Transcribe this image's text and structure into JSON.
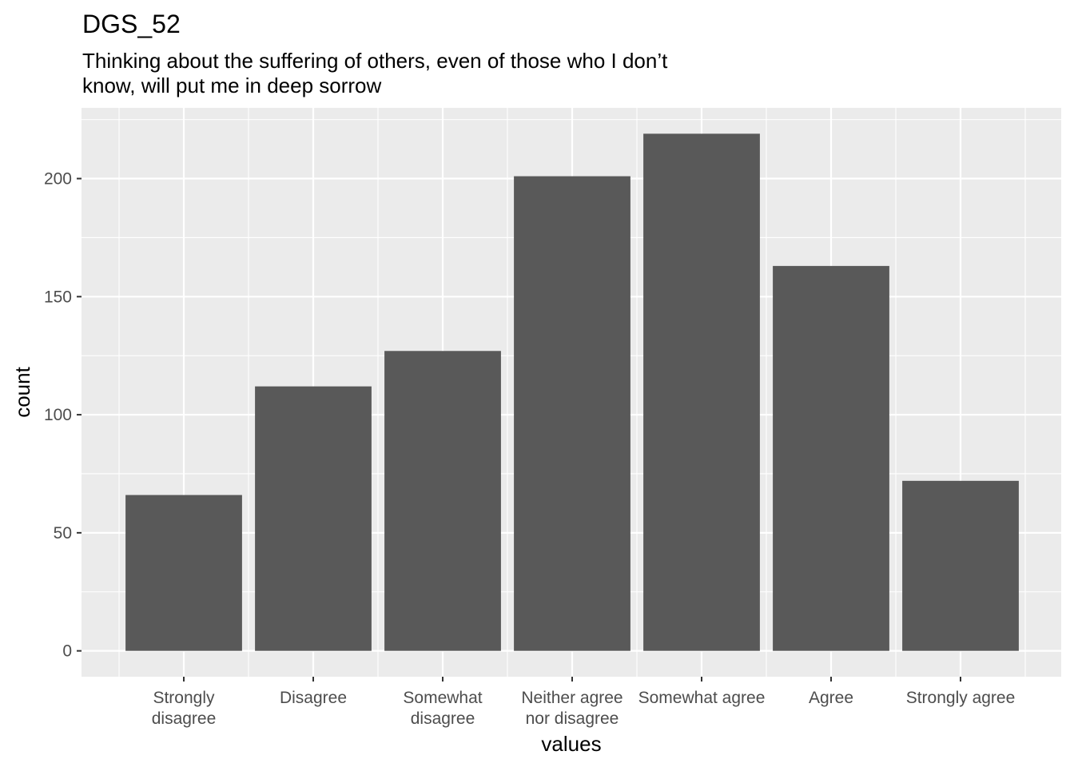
{
  "chart_data": {
    "type": "bar",
    "title": "DGS_52",
    "subtitle": [
      "Thinking about the suffering of others, even of those who I don’t",
      "know, will put me in deep sorrow"
    ],
    "xlabel": "values",
    "ylabel": "count",
    "categories": [
      [
        "Strongly",
        "disagree"
      ],
      [
        "Disagree"
      ],
      [
        "Somewhat",
        "disagree"
      ],
      [
        "Neither agree",
        "nor disagree"
      ],
      [
        "Somewhat agree"
      ],
      [
        "Agree"
      ],
      [
        "Strongly agree"
      ]
    ],
    "values": [
      66,
      112,
      127,
      201,
      219,
      163,
      72
    ],
    "yticks": [
      0,
      50,
      100,
      150,
      200
    ],
    "ylim": [
      -10.95,
      229.95
    ],
    "grid": true,
    "panel_background": "#EBEBEB",
    "grid_color": "#FFFFFF",
    "bar_color": "#595959"
  }
}
